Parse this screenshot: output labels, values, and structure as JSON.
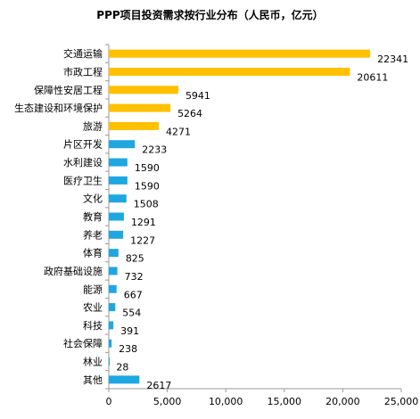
{
  "chart_data": {
    "type": "bar",
    "orientation": "horizontal",
    "title": "PPP项目投资需求按行业分布（人民币，亿元）",
    "categories": [
      "交通运输",
      "市政工程",
      "保障性安居工程",
      "生态建设和环境保护",
      "旅游",
      "片区开发",
      "水利建设",
      "医疗卫生",
      "文化",
      "教育",
      "养老",
      "体育",
      "政府基础设施",
      "能源",
      "农业",
      "科技",
      "社会保障",
      "林业",
      "其他"
    ],
    "values": [
      22341,
      20611,
      5941,
      5264,
      4271,
      2233,
      1590,
      1590,
      1508,
      1291,
      1227,
      825,
      732,
      667,
      554,
      391,
      238,
      28,
      2617
    ],
    "data_labels": [
      "22341",
      "20611",
      "5941",
      "5264",
      "4271",
      "2233",
      "1590",
      "1590",
      "1508",
      "1291",
      "1227",
      "825",
      "732",
      "667",
      "554",
      "391",
      "238",
      "28",
      "2617"
    ],
    "bar_colors": [
      "#FFC000",
      "#FFC000",
      "#FFC000",
      "#FFC000",
      "#FFC000",
      "#1EA7E1",
      "#1EA7E1",
      "#1EA7E1",
      "#1EA7E1",
      "#1EA7E1",
      "#1EA7E1",
      "#1EA7E1",
      "#1EA7E1",
      "#1EA7E1",
      "#1EA7E1",
      "#1EA7E1",
      "#1EA7E1",
      "#1EA7E1",
      "#1EA7E1"
    ],
    "xlim": [
      0,
      25000
    ],
    "xticks": [
      0,
      5000,
      10000,
      15000,
      20000,
      25000
    ],
    "xtick_labels": [
      "0",
      "5,000",
      "10,000",
      "15,000",
      "20,000",
      "25,000"
    ],
    "xlabel": "",
    "ylabel": "",
    "grid": false,
    "legend": "none"
  }
}
